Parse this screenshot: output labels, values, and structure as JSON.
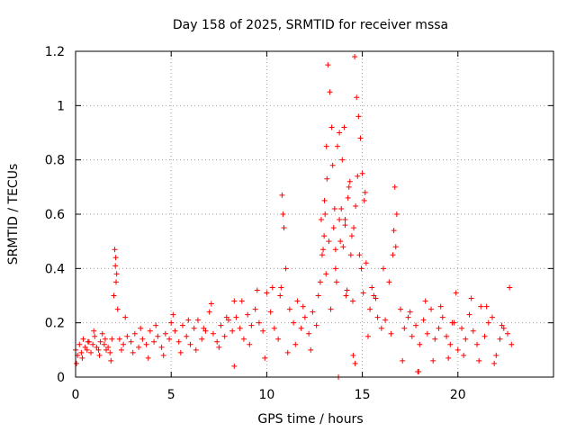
{
  "chart_data": {
    "type": "scatter",
    "title": "Day 158 of 2025, SRMTID for receiver mssa",
    "xlabel": "GPS time / hours",
    "ylabel": "SRMTID / TECUs",
    "xlim": [
      0,
      25
    ],
    "ylim": [
      0,
      1.2
    ],
    "x_ticks": [
      0,
      5,
      10,
      15,
      20
    ],
    "x_tick_labels": [
      "0",
      "5",
      "10",
      "15",
      "20"
    ],
    "y_ticks": [
      0,
      0.2,
      0.4,
      0.6,
      0.8,
      1,
      1.2
    ],
    "y_tick_labels": [
      "0",
      "0.2",
      "0.4",
      "0.6",
      "0.8",
      "1",
      "1.2"
    ],
    "grid": true,
    "marker": "+",
    "marker_color": "#ff0000",
    "series": [
      {
        "name": "SRMTID",
        "x": [
          0.0,
          0.1,
          0.2,
          0.3,
          0.4,
          0.5,
          0.6,
          0.7,
          0.8,
          0.9,
          1.0,
          1.1,
          1.2,
          1.3,
          1.4,
          1.5,
          1.6,
          1.7,
          1.8,
          1.9,
          2.0,
          2.05,
          2.1,
          2.15,
          2.2,
          2.3,
          2.4,
          2.5,
          2.7,
          2.9,
          3.1,
          3.3,
          3.5,
          3.7,
          3.9,
          4.1,
          4.3,
          4.5,
          4.7,
          4.9,
          5.0,
          5.2,
          5.4,
          5.6,
          5.8,
          6.0,
          6.2,
          6.4,
          6.6,
          6.8,
          7.0,
          7.2,
          7.4,
          7.6,
          7.8,
          8.0,
          8.2,
          8.4,
          8.6,
          8.8,
          9.0,
          9.2,
          9.4,
          9.6,
          9.8,
          10.0,
          10.2,
          10.4,
          10.6,
          10.7,
          10.8,
          10.9,
          11.0,
          11.2,
          11.4,
          11.6,
          11.8,
          12.0,
          12.2,
          12.4,
          12.6,
          12.8,
          12.9,
          13.0,
          13.05,
          13.1,
          13.2,
          13.3,
          13.4,
          13.5,
          13.6,
          13.7,
          13.8,
          13.9,
          14.0,
          14.1,
          14.2,
          14.3,
          14.4,
          14.5,
          14.55,
          14.6,
          14.7,
          14.8,
          14.9,
          15.0,
          15.1,
          15.2,
          15.4,
          15.6,
          15.8,
          16.0,
          16.2,
          16.4,
          16.6,
          16.7,
          16.8,
          17.0,
          17.2,
          17.4,
          17.6,
          17.8,
          18.0,
          18.2,
          18.4,
          18.6,
          18.8,
          19.0,
          19.2,
          19.4,
          19.6,
          19.8,
          20.0,
          20.2,
          20.4,
          20.6,
          20.8,
          21.0,
          21.2,
          21.4,
          21.6,
          21.8,
          22.0,
          22.2,
          22.4,
          22.6,
          22.8,
          0.05,
          0.35,
          0.65,
          0.95,
          1.25,
          1.55,
          1.85,
          2.6,
          3.0,
          3.4,
          3.8,
          4.2,
          4.6,
          5.1,
          5.5,
          5.9,
          6.3,
          6.7,
          7.1,
          7.5,
          7.9,
          8.3,
          8.7,
          9.1,
          9.5,
          9.9,
          10.3,
          11.1,
          11.5,
          11.9,
          12.3,
          12.7,
          13.15,
          13.35,
          13.55,
          13.75,
          13.95,
          14.15,
          14.35,
          14.65,
          14.85,
          15.3,
          15.7,
          16.1,
          16.5,
          17.1,
          17.5,
          17.9,
          18.3,
          18.7,
          19.1,
          19.5,
          19.9,
          20.3,
          20.7,
          21.1,
          21.5,
          21.9,
          22.3,
          22.7,
          13.25,
          13.45,
          13.65,
          13.85,
          14.05,
          14.25,
          14.45,
          14.75,
          14.95,
          12.85,
          12.95,
          15.05,
          15.15,
          16.65,
          16.75,
          10.75,
          10.85,
          2.08,
          2.12,
          13.8,
          14.62,
          14.52,
          13.02,
          13.12,
          8.3,
          17.95,
          13.6,
          14.1,
          15.5,
          19.7
        ],
        "y": [
          0.1,
          0.08,
          0.12,
          0.09,
          0.14,
          0.11,
          0.1,
          0.13,
          0.09,
          0.12,
          0.15,
          0.11,
          0.1,
          0.13,
          0.16,
          0.12,
          0.1,
          0.11,
          0.09,
          0.14,
          0.3,
          0.47,
          0.44,
          0.38,
          0.25,
          0.14,
          0.1,
          0.12,
          0.15,
          0.13,
          0.16,
          0.11,
          0.14,
          0.12,
          0.17,
          0.13,
          0.15,
          0.11,
          0.16,
          0.14,
          0.2,
          0.17,
          0.13,
          0.19,
          0.15,
          0.12,
          0.18,
          0.21,
          0.14,
          0.17,
          0.24,
          0.16,
          0.13,
          0.19,
          0.15,
          0.21,
          0.17,
          0.22,
          0.18,
          0.14,
          0.23,
          0.19,
          0.25,
          0.2,
          0.17,
          0.31,
          0.24,
          0.18,
          0.14,
          0.3,
          0.67,
          0.55,
          0.4,
          0.25,
          0.2,
          0.28,
          0.18,
          0.22,
          0.16,
          0.24,
          0.19,
          0.35,
          0.45,
          0.52,
          0.6,
          0.38,
          1.15,
          1.05,
          0.92,
          0.55,
          0.4,
          0.85,
          0.9,
          0.62,
          0.48,
          0.58,
          0.32,
          0.7,
          0.45,
          0.28,
          0.55,
          1.18,
          1.03,
          0.96,
          0.88,
          0.75,
          0.65,
          0.42,
          0.25,
          0.3,
          0.22,
          0.18,
          0.21,
          0.35,
          0.45,
          0.7,
          0.6,
          0.25,
          0.18,
          0.22,
          0.15,
          0.19,
          0.12,
          0.21,
          0.16,
          0.25,
          0.14,
          0.18,
          0.22,
          0.15,
          0.12,
          0.2,
          0.1,
          0.18,
          0.14,
          0.23,
          0.17,
          0.12,
          0.26,
          0.15,
          0.2,
          0.22,
          0.08,
          0.14,
          0.18,
          0.16,
          0.12,
          0.05,
          0.07,
          0.13,
          0.17,
          0.08,
          0.14,
          0.06,
          0.22,
          0.09,
          0.18,
          0.07,
          0.19,
          0.08,
          0.23,
          0.09,
          0.21,
          0.1,
          0.18,
          0.27,
          0.11,
          0.22,
          0.04,
          0.28,
          0.12,
          0.32,
          0.07,
          0.33,
          0.09,
          0.12,
          0.26,
          0.1,
          0.3,
          0.73,
          0.25,
          0.62,
          0.0,
          0.8,
          0.3,
          0.72,
          0.63,
          0.45,
          0.15,
          0.29,
          0.4,
          0.16,
          0.06,
          0.24,
          0.02,
          0.28,
          0.06,
          0.26,
          0.07,
          0.31,
          0.08,
          0.29,
          0.06,
          0.26,
          0.05,
          0.19,
          0.33,
          0.5,
          0.78,
          0.35,
          0.5,
          0.92,
          0.66,
          0.52,
          0.74,
          0.4,
          0.58,
          0.47,
          0.31,
          0.68,
          0.54,
          0.48,
          0.33,
          0.6,
          0.41,
          0.35,
          0.58,
          0.05,
          0.08,
          0.65,
          0.85,
          0.28,
          0.02,
          0.47,
          0.56,
          0.33,
          0.2
        ]
      }
    ]
  }
}
